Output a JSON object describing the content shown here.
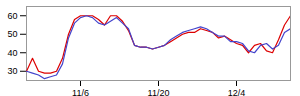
{
  "chart_data": {
    "type": "line",
    "categories": [
      null,
      null,
      null,
      null,
      null,
      null,
      null,
      null,
      null,
      "11/6",
      null,
      null,
      null,
      null,
      null,
      null,
      null,
      null,
      null,
      null,
      null,
      null,
      "11/20",
      null,
      null,
      null,
      null,
      null,
      null,
      null,
      null,
      null,
      null,
      null,
      null,
      "12/4",
      null,
      null,
      null,
      null,
      null,
      null,
      null,
      null,
      null
    ],
    "series": [
      {
        "color": "#dd0000",
        "values": [
          30,
          37,
          30,
          29,
          29,
          30,
          37,
          50,
          58,
          60,
          60,
          60,
          58,
          55,
          60,
          60,
          57,
          52,
          44,
          43,
          43,
          42,
          43,
          44,
          46,
          48,
          50,
          51,
          51,
          53,
          52,
          51,
          48,
          49,
          47,
          45,
          44,
          40,
          44,
          45,
          41,
          40,
          47,
          55,
          60
        ]
      },
      {
        "color": "#4444cc",
        "values": [
          30,
          29,
          28,
          26,
          27,
          28,
          34,
          48,
          56,
          59,
          60,
          59,
          56,
          55,
          57,
          59,
          56,
          53,
          44,
          43,
          43,
          42,
          43,
          44,
          47,
          49,
          51,
          52,
          53,
          54,
          53,
          51,
          49,
          49,
          46,
          46,
          45,
          41,
          40,
          44,
          45,
          42,
          44,
          51,
          53
        ]
      }
    ],
    "ylim": [
      25,
      65
    ],
    "yticks": [
      30,
      40,
      50,
      60
    ]
  }
}
